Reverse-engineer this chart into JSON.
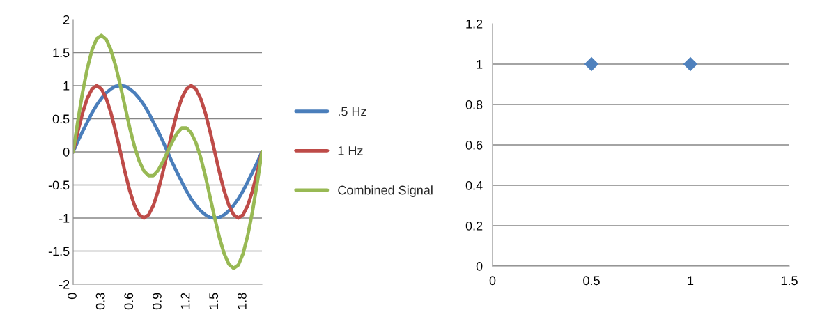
{
  "chart_data": [
    {
      "type": "line",
      "categories": [
        "0",
        null,
        null,
        null,
        null,
        null,
        "0.3",
        null,
        null,
        null,
        null,
        null,
        "0.6",
        null,
        null,
        null,
        null,
        null,
        "0.9",
        null,
        null,
        null,
        null,
        null,
        "1.2",
        null,
        null,
        null,
        null,
        null,
        "1.5",
        null,
        null,
        null,
        null,
        null,
        "1.8",
        null,
        null,
        null,
        null
      ],
      "series": [
        {
          "name": ".5 Hz",
          "color": "#4a7ebb",
          "values": [
            0,
            0.16,
            0.31,
            0.45,
            0.59,
            0.71,
            0.81,
            0.89,
            0.95,
            0.99,
            1,
            0.99,
            0.95,
            0.89,
            0.81,
            0.71,
            0.59,
            0.45,
            0.31,
            0.16,
            0,
            -0.16,
            -0.31,
            -0.45,
            -0.59,
            -0.71,
            -0.81,
            -0.89,
            -0.95,
            -0.99,
            -1,
            -0.99,
            -0.95,
            -0.89,
            -0.81,
            -0.71,
            -0.59,
            -0.45,
            -0.31,
            -0.16,
            0
          ]
        },
        {
          "name": "1 Hz",
          "color": "#be4b48",
          "values": [
            0,
            0.31,
            0.59,
            0.81,
            0.95,
            1,
            0.95,
            0.81,
            0.59,
            0.31,
            0,
            -0.31,
            -0.59,
            -0.81,
            -0.95,
            -1,
            -0.95,
            -0.81,
            -0.59,
            -0.31,
            0,
            0.31,
            0.59,
            0.81,
            0.95,
            1,
            0.95,
            0.81,
            0.59,
            0.31,
            0,
            -0.31,
            -0.59,
            -0.81,
            -0.95,
            -1,
            -0.95,
            -0.81,
            -0.59,
            -0.31,
            0
          ]
        },
        {
          "name": "Combined Signal",
          "color": "#98b954",
          "values": [
            0,
            0.47,
            0.9,
            1.26,
            1.54,
            1.71,
            1.76,
            1.7,
            1.54,
            1.3,
            1,
            0.68,
            0.36,
            0.08,
            -0.14,
            -0.29,
            -0.36,
            -0.36,
            -0.28,
            -0.15,
            0,
            0.15,
            0.28,
            0.36,
            0.36,
            0.29,
            0.14,
            -0.08,
            -0.36,
            -0.68,
            -1,
            -1.3,
            -1.54,
            -1.7,
            -1.76,
            -1.71,
            -1.54,
            -1.26,
            -0.9,
            -0.47,
            0
          ]
        }
      ],
      "ylim": [
        -2,
        2
      ],
      "yticks": [
        -2,
        -1.5,
        -1,
        -0.5,
        0,
        0.5,
        1,
        1.5,
        2
      ],
      "grid": "y",
      "legend": "right",
      "marker": "none"
    },
    {
      "type": "scatter",
      "x": [
        0.5,
        1
      ],
      "values": [
        1,
        1
      ],
      "color": "#4f81bd",
      "marker": "diamond",
      "xlim": [
        0,
        1.5
      ],
      "xticks": [
        0,
        0.5,
        1,
        1.5
      ],
      "ylim": [
        0,
        1.2
      ],
      "yticks": [
        0,
        0.2,
        0.4,
        0.6,
        0.8,
        1,
        1.2
      ],
      "grid": "y"
    }
  ]
}
